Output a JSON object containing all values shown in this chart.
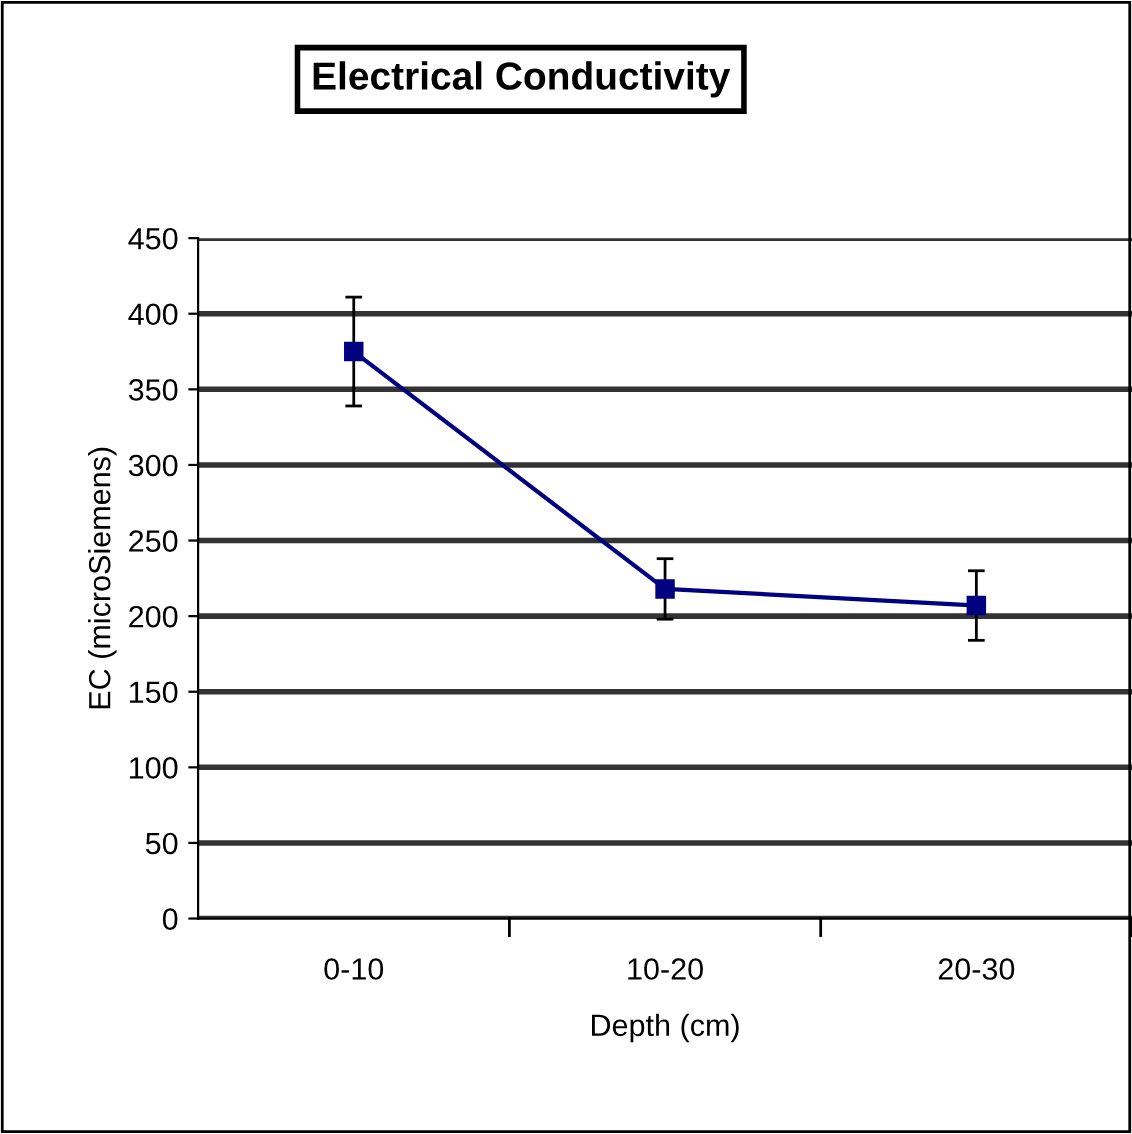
{
  "chart_data": {
    "type": "line",
    "title": "Electrical Conductivity",
    "xlabel": "Depth (cm)",
    "ylabel": "EC (microSiemens)",
    "categories": [
      "0-10",
      "10-20",
      "20-30"
    ],
    "series": [
      {
        "color": "#000080",
        "values": [
          375,
          218,
          207
        ],
        "errors": [
          36,
          20,
          23
        ]
      }
    ],
    "ylim": [
      0,
      450
    ],
    "yticks": [
      0,
      50,
      100,
      150,
      200,
      250,
      300,
      350,
      400,
      450
    ],
    "grid": "y",
    "marker": "square",
    "line_style": "solid",
    "legend": false
  }
}
